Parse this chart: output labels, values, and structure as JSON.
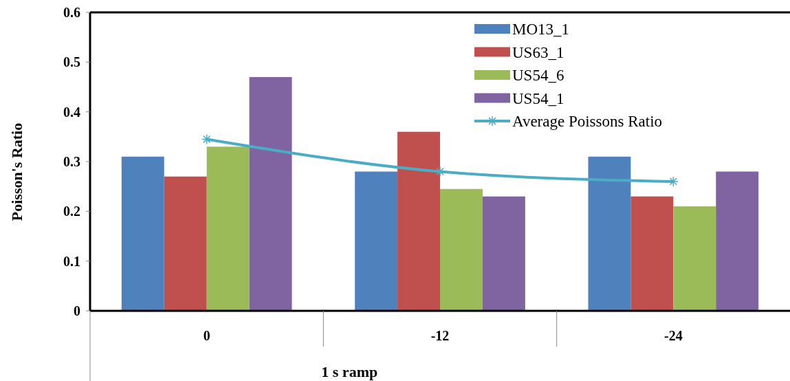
{
  "chart_data": {
    "type": "bar",
    "xlabel": "1 s ramp",
    "ylabel": "Poisson's Ratio",
    "categories": [
      "0",
      "-12",
      "-24"
    ],
    "series": [
      {
        "name": "MO13_1",
        "color": "#4f81bd",
        "values": [
          0.31,
          0.28,
          0.31
        ]
      },
      {
        "name": "US63_1",
        "color": "#c0504d",
        "values": [
          0.27,
          0.36,
          0.23
        ]
      },
      {
        "name": "US54_6",
        "color": "#9bbb59",
        "values": [
          0.33,
          0.245,
          0.21
        ]
      },
      {
        "name": "US54_1",
        "color": "#8064a2",
        "values": [
          0.47,
          0.23,
          0.28
        ]
      },
      {
        "name": "Average Poissons Ratio",
        "type": "line",
        "color": "#4bacc6",
        "marker": "cross",
        "values": [
          0.345,
          0.28,
          0.26
        ]
      }
    ],
    "ylim": [
      0,
      0.6
    ],
    "yticks": [
      0,
      0.1,
      0.2,
      0.3,
      0.4,
      0.5,
      0.6
    ],
    "grid": false,
    "legend": "top right"
  }
}
